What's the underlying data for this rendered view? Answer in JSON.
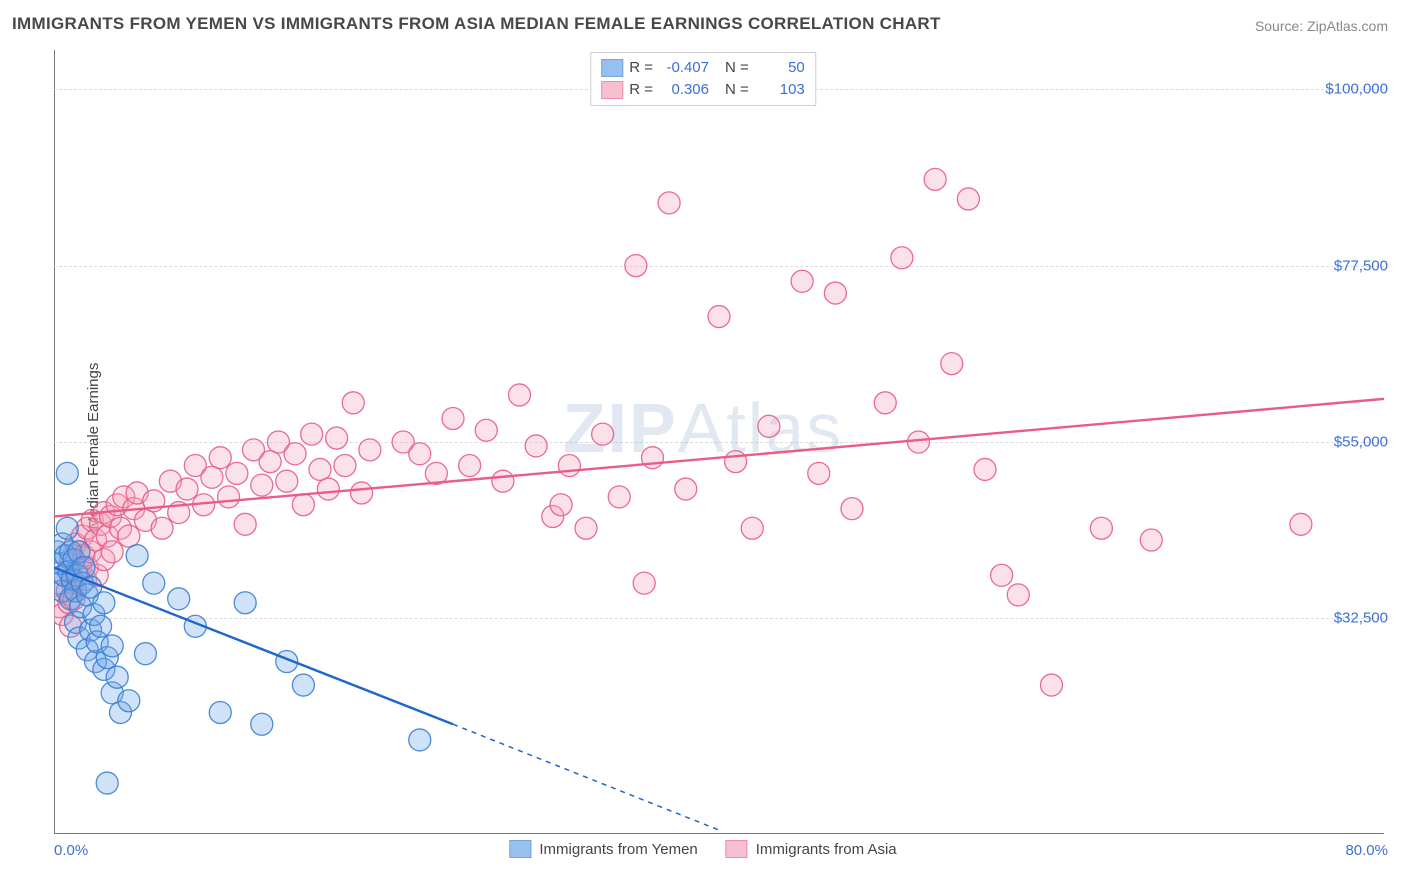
{
  "title": "IMMIGRANTS FROM YEMEN VS IMMIGRANTS FROM ASIA MEDIAN FEMALE EARNINGS CORRELATION CHART",
  "source_prefix": "Source: ",
  "source_name": "ZipAtlas.com",
  "ylabel": "Median Female Earnings",
  "watermark": "ZIPAtlas",
  "chart": {
    "type": "scatter-correlation",
    "background_color": "#ffffff",
    "grid_color": "#dcdcdc",
    "axis_color": "#777777",
    "text_color": "#444444",
    "value_color": "#3b6fd8",
    "xlim": [
      0,
      80
    ],
    "ylim": [
      5000,
      105000
    ],
    "yticks": [
      {
        "v": 32500,
        "label": "$32,500"
      },
      {
        "v": 55000,
        "label": "$55,000"
      },
      {
        "v": 77500,
        "label": "$77,500"
      },
      {
        "v": 100000,
        "label": "$100,000"
      }
    ],
    "xticks": [
      {
        "v": 0,
        "label": "0.0%"
      },
      {
        "v": 80,
        "label": "80.0%"
      }
    ],
    "marker_radius": 11,
    "marker_fill_opacity": 0.32,
    "marker_stroke_opacity": 0.9,
    "marker_stroke_width": 1.3,
    "trend_line_width": 2.4
  },
  "series": [
    {
      "key": "yemen",
      "label": "Immigrants from Yemen",
      "color": "#6da6e8",
      "stroke": "#3b7fd0",
      "line_color": "#1f66c9",
      "R": "-0.407",
      "N": "50",
      "trend": {
        "x1": 0,
        "y1": 39000,
        "x2_solid": 24,
        "y2_solid": 19000,
        "x2_dash": 40,
        "y2_dash": 5500
      },
      "points": [
        [
          0.2,
          41000
        ],
        [
          0.3,
          37000
        ],
        [
          0.4,
          39500
        ],
        [
          0.5,
          42000
        ],
        [
          0.5,
          36000
        ],
        [
          0.6,
          38000
        ],
        [
          0.7,
          40500
        ],
        [
          0.8,
          51000
        ],
        [
          0.8,
          44000
        ],
        [
          0.9,
          38500
        ],
        [
          1.0,
          35000
        ],
        [
          1.0,
          41000
        ],
        [
          1.1,
          37500
        ],
        [
          1.2,
          40000
        ],
        [
          1.3,
          32000
        ],
        [
          1.3,
          36000
        ],
        [
          1.4,
          38000
        ],
        [
          1.5,
          41000
        ],
        [
          1.5,
          30000
        ],
        [
          1.6,
          34000
        ],
        [
          1.7,
          37000
        ],
        [
          1.8,
          39000
        ],
        [
          2.0,
          35500
        ],
        [
          2.0,
          28500
        ],
        [
          2.2,
          31000
        ],
        [
          2.2,
          36500
        ],
        [
          2.4,
          33000
        ],
        [
          2.5,
          27000
        ],
        [
          2.6,
          29500
        ],
        [
          2.8,
          31500
        ],
        [
          3.0,
          26000
        ],
        [
          3.0,
          34500
        ],
        [
          3.2,
          27500
        ],
        [
          3.5,
          23000
        ],
        [
          3.5,
          29000
        ],
        [
          3.8,
          25000
        ],
        [
          4.0,
          20500
        ],
        [
          4.5,
          22000
        ],
        [
          5.0,
          40500
        ],
        [
          5.5,
          28000
        ],
        [
          6.0,
          37000
        ],
        [
          7.5,
          35000
        ],
        [
          8.5,
          31500
        ],
        [
          10.0,
          20500
        ],
        [
          11.5,
          34500
        ],
        [
          12.5,
          19000
        ],
        [
          14.0,
          27000
        ],
        [
          15.0,
          24000
        ],
        [
          22.0,
          17000
        ],
        [
          3.2,
          11500
        ]
      ]
    },
    {
      "key": "asia",
      "label": "Immigrants from Asia",
      "color": "#f4a6bd",
      "stroke": "#e85c86",
      "line_color": "#e85c86",
      "R": "0.306",
      "N": "103",
      "trend": {
        "x1": 0,
        "y1": 45500,
        "x2_solid": 80,
        "y2_solid": 60500,
        "x2_dash": 80,
        "y2_dash": 60500
      },
      "points": [
        [
          0.3,
          34000
        ],
        [
          0.5,
          33000
        ],
        [
          0.6,
          38000
        ],
        [
          0.8,
          36000
        ],
        [
          0.9,
          34500
        ],
        [
          1.0,
          40000
        ],
        [
          1.1,
          37000
        ],
        [
          1.2,
          35000
        ],
        [
          1.3,
          42000
        ],
        [
          1.4,
          38500
        ],
        [
          1.5,
          41000
        ],
        [
          1.6,
          39000
        ],
        [
          1.7,
          43000
        ],
        [
          1.8,
          40500
        ],
        [
          1.9,
          37500
        ],
        [
          2.0,
          44000
        ],
        [
          2.0,
          39000
        ],
        [
          2.2,
          41000
        ],
        [
          2.3,
          45000
        ],
        [
          2.5,
          42500
        ],
        [
          2.6,
          38000
        ],
        [
          2.8,
          44500
        ],
        [
          3.0,
          40000
        ],
        [
          3.0,
          46000
        ],
        [
          3.2,
          43000
        ],
        [
          3.4,
          45500
        ],
        [
          3.5,
          41000
        ],
        [
          3.8,
          47000
        ],
        [
          4.0,
          44000
        ],
        [
          4.2,
          48000
        ],
        [
          4.5,
          43000
        ],
        [
          4.8,
          46500
        ],
        [
          5.0,
          48500
        ],
        [
          5.5,
          45000
        ],
        [
          6.0,
          47500
        ],
        [
          6.5,
          44000
        ],
        [
          7.0,
          50000
        ],
        [
          7.5,
          46000
        ],
        [
          8.0,
          49000
        ],
        [
          8.5,
          52000
        ],
        [
          9.0,
          47000
        ],
        [
          9.5,
          50500
        ],
        [
          10.0,
          53000
        ],
        [
          10.5,
          48000
        ],
        [
          11.0,
          51000
        ],
        [
          11.5,
          44500
        ],
        [
          12.0,
          54000
        ],
        [
          12.5,
          49500
        ],
        [
          13.0,
          52500
        ],
        [
          13.5,
          55000
        ],
        [
          14.0,
          50000
        ],
        [
          14.5,
          53500
        ],
        [
          15.0,
          47000
        ],
        [
          15.5,
          56000
        ],
        [
          16.0,
          51500
        ],
        [
          16.5,
          49000
        ],
        [
          17.0,
          55500
        ],
        [
          17.5,
          52000
        ],
        [
          18.0,
          60000
        ],
        [
          18.5,
          48500
        ],
        [
          19.0,
          54000
        ],
        [
          21.0,
          55000
        ],
        [
          22.0,
          53500
        ],
        [
          23.0,
          51000
        ],
        [
          24.0,
          58000
        ],
        [
          25.0,
          52000
        ],
        [
          26.0,
          56500
        ],
        [
          27.0,
          50000
        ],
        [
          28.0,
          61000
        ],
        [
          29.0,
          54500
        ],
        [
          30.0,
          45500
        ],
        [
          30.5,
          47000
        ],
        [
          31.0,
          52000
        ],
        [
          32.0,
          44000
        ],
        [
          33.0,
          56000
        ],
        [
          34.0,
          48000
        ],
        [
          35.0,
          77500
        ],
        [
          35.5,
          37000
        ],
        [
          36.0,
          53000
        ],
        [
          37.0,
          85500
        ],
        [
          38.0,
          49000
        ],
        [
          40.0,
          71000
        ],
        [
          41.0,
          52500
        ],
        [
          42.0,
          44000
        ],
        [
          43.0,
          57000
        ],
        [
          45.0,
          75500
        ],
        [
          46.0,
          51000
        ],
        [
          47.0,
          74000
        ],
        [
          48.0,
          46500
        ],
        [
          50.0,
          60000
        ],
        [
          51.0,
          78500
        ],
        [
          52.0,
          55000
        ],
        [
          53.0,
          88500
        ],
        [
          54.0,
          65000
        ],
        [
          55.0,
          86000
        ],
        [
          56.0,
          51500
        ],
        [
          57.0,
          38000
        ],
        [
          58.0,
          35500
        ],
        [
          60.0,
          24000
        ],
        [
          63.0,
          44000
        ],
        [
          66.0,
          42500
        ],
        [
          75.0,
          44500
        ],
        [
          1.0,
          31500
        ]
      ]
    }
  ]
}
